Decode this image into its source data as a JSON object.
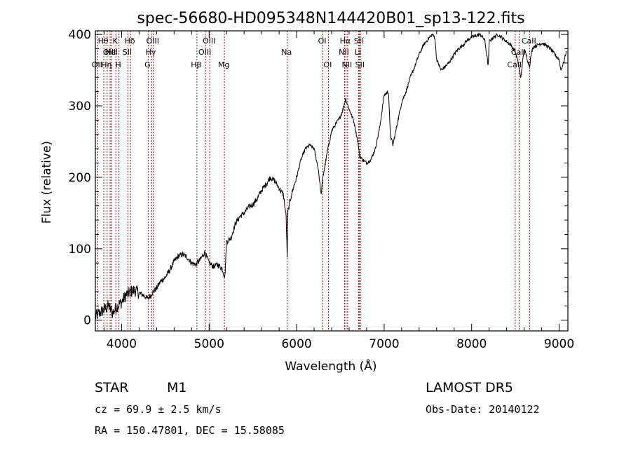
{
  "chart_data": {
    "type": "line",
    "title": "spec-56680-HD095348N144420B01_sp13-122.fits",
    "xlabel": "Wavelength (Å)",
    "ylabel": "Flux (relative)",
    "xlim": [
      3700,
      9100
    ],
    "ylim": [
      -15,
      405
    ],
    "x_ticks": [
      4000,
      5000,
      6000,
      7000,
      8000,
      9000
    ],
    "y_ticks": [
      0,
      100,
      200,
      300,
      400
    ],
    "grid": false,
    "series_color": "#000000",
    "line_marker_color": "#a01010",
    "series": [
      {
        "x": [
          3700,
          3750,
          3800,
          3850,
          3900,
          3950,
          4000,
          4050,
          4100,
          4150,
          4200,
          4250,
          4300,
          4350,
          4400,
          4450,
          4500,
          4550,
          4600,
          4650,
          4700,
          4750,
          4800,
          4850,
          4900,
          4950,
          5000,
          5050,
          5100,
          5150,
          5180,
          5200,
          5250,
          5300,
          5350,
          5400,
          5450,
          5500,
          5550,
          5600,
          5650,
          5700,
          5750,
          5800,
          5850,
          5880,
          5893,
          5900,
          5920,
          5950,
          6000,
          6050,
          6100,
          6150,
          6200,
          6250,
          6280,
          6300,
          6350,
          6400,
          6450,
          6500,
          6530,
          6560,
          6600,
          6650,
          6700,
          6720,
          6750,
          6800,
          6850,
          6900,
          6950,
          7000,
          7050,
          7070,
          7100,
          7150,
          7200,
          7250,
          7300,
          7350,
          7400,
          7450,
          7500,
          7550,
          7580,
          7600,
          7650,
          7700,
          7750,
          7800,
          7850,
          7900,
          7950,
          8000,
          8050,
          8100,
          8150,
          8190,
          8200,
          8250,
          8300,
          8350,
          8400,
          8450,
          8500,
          8542,
          8560,
          8600,
          8662,
          8680,
          8700,
          8750,
          8800,
          8850,
          8900,
          8950,
          9000,
          9020,
          9050,
          9080
        ],
        "y": [
          5,
          10,
          15,
          20,
          10,
          20,
          25,
          35,
          40,
          42,
          38,
          35,
          30,
          38,
          45,
          55,
          60,
          70,
          82,
          90,
          92,
          88,
          80,
          78,
          85,
          95,
          80,
          75,
          78,
          72,
          60,
          110,
          115,
          135,
          145,
          150,
          158,
          162,
          170,
          182,
          190,
          200,
          195,
          185,
          175,
          145,
          85,
          150,
          165,
          180,
          200,
          225,
          240,
          245,
          240,
          210,
          175,
          200,
          235,
          265,
          275,
          285,
          295,
          310,
          295,
          280,
          250,
          230,
          225,
          220,
          225,
          240,
          270,
          315,
          320,
          260,
          245,
          275,
          305,
          320,
          340,
          355,
          372,
          385,
          393,
          400,
          395,
          365,
          350,
          355,
          362,
          372,
          380,
          385,
          392,
          396,
          398,
          400,
          392,
          355,
          390,
          396,
          400,
          395,
          390,
          385,
          375,
          355,
          338,
          380,
          355,
          372,
          382,
          385,
          388,
          385,
          380,
          372,
          365,
          350,
          360,
          375
        ]
      }
    ],
    "spectral_lines": [
      {
        "w": 3727,
        "label": "OII",
        "row": 3
      },
      {
        "w": 3797,
        "label": "Hθ",
        "row": 1
      },
      {
        "w": 3835,
        "label": "Hη",
        "row": 3
      },
      {
        "w": 3869,
        "label": "OIII",
        "row": 2
      },
      {
        "w": 3889,
        "label": "HeI",
        "row": 2
      },
      {
        "w": 3934,
        "label": "K",
        "row": 1
      },
      {
        "w": 3970,
        "label": "H",
        "row": 3
      },
      {
        "w": 4072,
        "label": "SII",
        "row": 2
      },
      {
        "w": 4102,
        "label": "Hδ",
        "row": 1
      },
      {
        "w": 4304,
        "label": "G",
        "row": 3
      },
      {
        "w": 4341,
        "label": "Hγ",
        "row": 2
      },
      {
        "w": 4363,
        "label": "OIII",
        "row": 1
      },
      {
        "w": 4861,
        "label": "Hβ",
        "row": 3
      },
      {
        "w": 4959,
        "label": "OIII",
        "row": 2
      },
      {
        "w": 5007,
        "label": "OIII",
        "row": 1
      },
      {
        "w": 5175,
        "label": "Mg",
        "row": 3
      },
      {
        "w": 5893,
        "label": "Na",
        "row": 2
      },
      {
        "w": 6300,
        "label": "OI",
        "row": 1
      },
      {
        "w": 6363,
        "label": "OI",
        "row": 3
      },
      {
        "w": 6548,
        "label": "NII",
        "row": 2
      },
      {
        "w": 6563,
        "label": "Hα",
        "row": 1
      },
      {
        "w": 6583,
        "label": "NII",
        "row": 3
      },
      {
        "w": 6708,
        "label": "Li",
        "row": 2
      },
      {
        "w": 6716,
        "label": "SII",
        "row": 1
      },
      {
        "w": 6731,
        "label": "SII",
        "row": 3
      },
      {
        "w": 8498,
        "label": "CaII",
        "row": 3
      },
      {
        "w": 8542,
        "label": "CaII",
        "row": 2
      },
      {
        "w": 8662,
        "label": "CaII",
        "row": 1
      }
    ]
  },
  "info": {
    "class_label": "STAR",
    "subclass_label": "M1",
    "survey_label": "LAMOST DR5",
    "cz_text": "cz = 69.9 ± 2.5 km/s",
    "obs_date_text": "Obs-Date: 20140122",
    "radec_text": "RA = 150.47801, DEC =  15.58085"
  }
}
